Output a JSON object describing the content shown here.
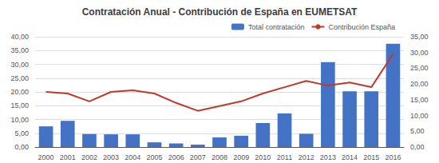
{
  "chart_data": {
    "type": "bar",
    "title": "Contratación Anual - Contribución de España en EUMETSAT",
    "categories": [
      "2000",
      "2001",
      "2002",
      "2003",
      "2004",
      "2005",
      "2006",
      "2007",
      "2008",
      "2009",
      "2010",
      "2011",
      "2012",
      "2013",
      "2014",
      "2015",
      "2016"
    ],
    "series": [
      {
        "name": "Total contratación",
        "type": "bar",
        "color": "#4472C4",
        "values": [
          7.5,
          9.5,
          4.7,
          4.6,
          4.6,
          1.7,
          1.3,
          0.9,
          3.5,
          4.1,
          8.7,
          12.2,
          4.8,
          30.8,
          20.2,
          20.2,
          37.5
        ]
      },
      {
        "name": "Contribución España",
        "type": "line",
        "color": "#C0392B",
        "axis": "y2",
        "values": [
          17.5,
          17.0,
          14.5,
          17.5,
          18.0,
          17.0,
          14.0,
          11.5,
          13.0,
          14.5,
          17.0,
          19.0,
          21.0,
          19.5,
          20.5,
          19.0,
          29.5
        ]
      }
    ],
    "ylim": [
      0,
      40
    ],
    "yticks": [
      {
        "value": 0,
        "label": "0,00"
      },
      {
        "value": 5,
        "label": "5,00"
      },
      {
        "value": 10,
        "label": "10,00"
      },
      {
        "value": 15,
        "label": "15,00"
      },
      {
        "value": 20,
        "label": "20,00"
      },
      {
        "value": 25,
        "label": "25,00"
      },
      {
        "value": 30,
        "label": "30,00"
      },
      {
        "value": 35,
        "label": "35,00"
      },
      {
        "value": 40,
        "label": "40,00"
      }
    ],
    "y2lim": [
      0,
      35
    ],
    "y2ticks": [
      {
        "value": 0,
        "label": "0,00"
      },
      {
        "value": 5,
        "label": "5,00"
      },
      {
        "value": 10,
        "label": "10,00"
      },
      {
        "value": 15,
        "label": "15,00"
      },
      {
        "value": 20,
        "label": "20,00"
      },
      {
        "value": 25,
        "label": "25,00"
      },
      {
        "value": 30,
        "label": "30,00"
      },
      {
        "value": 35,
        "label": "35,00"
      }
    ],
    "grid": true,
    "legend": "upper right"
  }
}
